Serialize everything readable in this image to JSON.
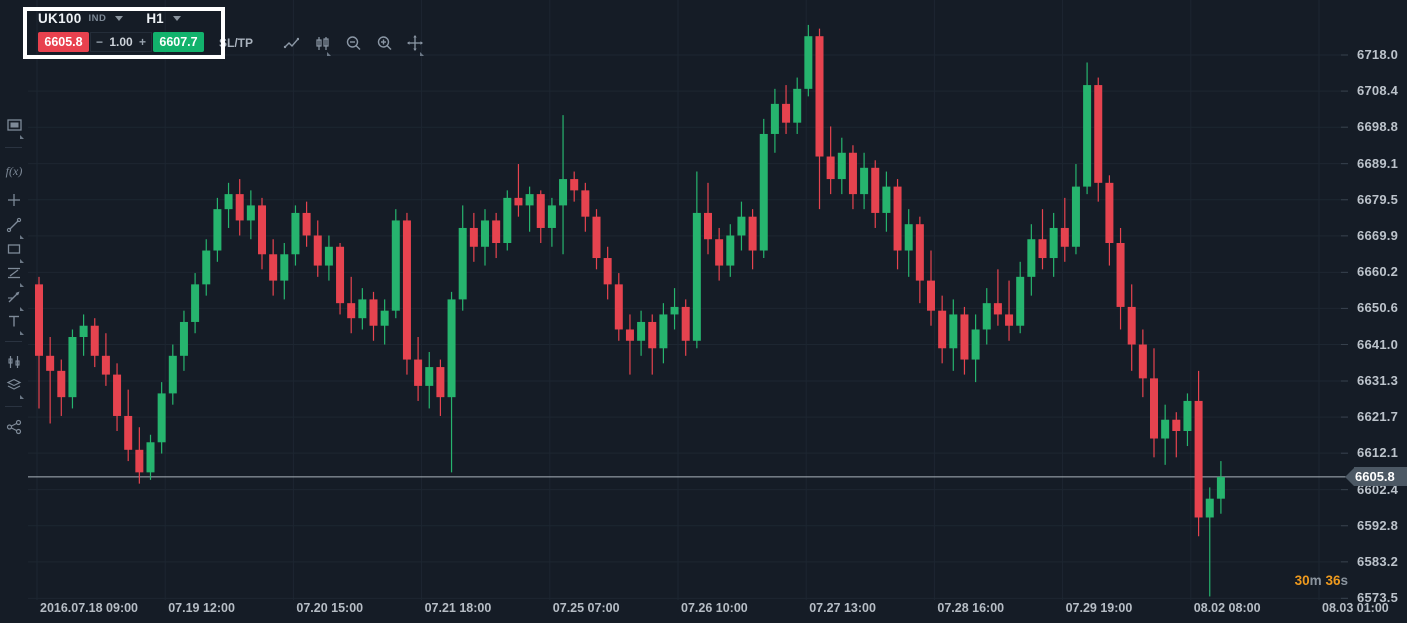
{
  "header": {
    "symbol": "UK100",
    "symbol_type": "IND",
    "timeframe": "H1",
    "sell_price": "6605.8",
    "minus_sign": "−",
    "quantity": "1.00",
    "plus_sign": "+",
    "buy_price": "6607.7",
    "sltp_label": "SL/TP"
  },
  "toolbar": {
    "icons": [
      "line-chart-icon",
      "candlestick-style-icon",
      "zoom-out-icon",
      "zoom-in-icon",
      "pan-crosshair-icon"
    ],
    "icons_with_caret": [
      "candlestick-style-icon",
      "pan-crosshair-icon"
    ]
  },
  "sidebar": {
    "icons": [
      "chart-layout-icon",
      "divider",
      "indicators-fx-icon",
      "crosshair-icon",
      "trend-line-icon",
      "rectangle-tool-icon",
      "fibonacci-icon",
      "arrow-annotation-icon",
      "text-tool-icon",
      "divider",
      "candle-settings-icon",
      "object-tree-icon",
      "divider",
      "share-icon"
    ]
  },
  "countdown": {
    "minutes": "30",
    "minutes_unit": "m",
    "seconds": "36",
    "seconds_unit": "s"
  },
  "price_tag": {
    "value": "6605.8"
  },
  "chart_data": {
    "type": "candlestick",
    "title": "UK100 H1 candlestick chart",
    "current_price": 6605.8,
    "sell_price": 6605.8,
    "buy_price": 6607.7,
    "ylim": [
      6570,
      6730
    ],
    "grid": true,
    "colors": {
      "up": "#26b46e",
      "down": "#e6434f",
      "grid": "#1d2631",
      "price_line": "#aab3bb"
    },
    "price_axis_labels": [
      "6718.0",
      "6708.4",
      "6698.8",
      "6689.1",
      "6679.5",
      "6669.9",
      "6660.2",
      "6650.6",
      "6641.0",
      "6631.3",
      "6621.7",
      "6612.1",
      "6602.4",
      "6592.8",
      "6583.2",
      "6573.5"
    ],
    "time_axis_labels": [
      "2016.07.18 09:00",
      "07.19 12:00",
      "07.20 15:00",
      "07.21 18:00",
      "07.25 07:00",
      "07.26 10:00",
      "07.27 13:00",
      "07.28 16:00",
      "07.29 19:00",
      "08.02 08:00",
      "08.03 01:00"
    ],
    "candles_ohlc": [
      [
        6657,
        6659,
        6624,
        6638
      ],
      [
        6638,
        6643,
        6620,
        6634
      ],
      [
        6634,
        6637,
        6622,
        6627
      ],
      [
        6627,
        6645,
        6624,
        6643
      ],
      [
        6643,
        6649,
        6638,
        6646
      ],
      [
        6646,
        6648,
        6635,
        6638
      ],
      [
        6638,
        6644,
        6630,
        6633
      ],
      [
        6633,
        6636,
        6618,
        6622
      ],
      [
        6622,
        6629,
        6610,
        6613
      ],
      [
        6613,
        6619,
        6604,
        6607
      ],
      [
        6607,
        6617,
        6605,
        6615
      ],
      [
        6615,
        6631,
        6612,
        6628
      ],
      [
        6628,
        6641,
        6625,
        6638
      ],
      [
        6638,
        6650,
        6634,
        6647
      ],
      [
        6647,
        6660,
        6644,
        6657
      ],
      [
        6657,
        6669,
        6654,
        6666
      ],
      [
        6666,
        6680,
        6663,
        6677
      ],
      [
        6677,
        6684,
        6672,
        6681
      ],
      [
        6681,
        6685,
        6670,
        6674
      ],
      [
        6674,
        6682,
        6669,
        6678
      ],
      [
        6678,
        6680,
        6661,
        6665
      ],
      [
        6665,
        6669,
        6654,
        6658
      ],
      [
        6658,
        6668,
        6653,
        6665
      ],
      [
        6665,
        6678,
        6662,
        6676
      ],
      [
        6676,
        6679,
        6667,
        6670
      ],
      [
        6670,
        6674,
        6659,
        6662
      ],
      [
        6662,
        6670,
        6658,
        6667
      ],
      [
        6667,
        6668,
        6649,
        6652
      ],
      [
        6652,
        6659,
        6644,
        6648
      ],
      [
        6648,
        6656,
        6645,
        6653
      ],
      [
        6653,
        6655,
        6642,
        6646
      ],
      [
        6646,
        6653,
        6641,
        6650
      ],
      [
        6650,
        6677,
        6648,
        6674
      ],
      [
        6674,
        6676,
        6633,
        6637
      ],
      [
        6637,
        6643,
        6626,
        6630
      ],
      [
        6630,
        6639,
        6624,
        6635
      ],
      [
        6635,
        6637,
        6622,
        6627
      ],
      [
        6627,
        6655,
        6607,
        6653
      ],
      [
        6653,
        6678,
        6650,
        6672
      ],
      [
        6672,
        6676,
        6663,
        6667
      ],
      [
        6667,
        6677,
        6662,
        6674
      ],
      [
        6674,
        6676,
        6664,
        6668
      ],
      [
        6668,
        6682,
        6666,
        6680
      ],
      [
        6680,
        6689,
        6675,
        6678
      ],
      [
        6678,
        6683,
        6671,
        6681
      ],
      [
        6681,
        6682,
        6668,
        6672
      ],
      [
        6672,
        6680,
        6667,
        6678
      ],
      [
        6678,
        6702,
        6665,
        6685
      ],
      [
        6685,
        6687,
        6679,
        6682
      ],
      [
        6682,
        6684,
        6671,
        6675
      ],
      [
        6675,
        6677,
        6661,
        6664
      ],
      [
        6664,
        6667,
        6653,
        6657
      ],
      [
        6657,
        6660,
        6642,
        6645
      ],
      [
        6645,
        6649,
        6633,
        6642
      ],
      [
        6642,
        6650,
        6638,
        6647
      ],
      [
        6647,
        6649,
        6633,
        6640
      ],
      [
        6640,
        6652,
        6636,
        6649
      ],
      [
        6649,
        6656,
        6645,
        6651
      ],
      [
        6651,
        6653,
        6638,
        6642
      ],
      [
        6642,
        6687,
        6640,
        6676
      ],
      [
        6676,
        6684,
        6665,
        6669
      ],
      [
        6669,
        6672,
        6658,
        6662
      ],
      [
        6662,
        6673,
        6659,
        6670
      ],
      [
        6670,
        6679,
        6666,
        6675
      ],
      [
        6675,
        6677,
        6661,
        6666
      ],
      [
        6666,
        6701,
        6664,
        6697
      ],
      [
        6697,
        6709,
        6692,
        6705
      ],
      [
        6705,
        6710,
        6697,
        6700
      ],
      [
        6700,
        6712,
        6697,
        6709
      ],
      [
        6709,
        6726,
        6707,
        6723
      ],
      [
        6723,
        6725,
        6677,
        6691
      ],
      [
        6691,
        6699,
        6681,
        6685
      ],
      [
        6685,
        6696,
        6681,
        6692
      ],
      [
        6692,
        6694,
        6677,
        6681
      ],
      [
        6681,
        6692,
        6677,
        6688
      ],
      [
        6688,
        6690,
        6672,
        6676
      ],
      [
        6676,
        6687,
        6671,
        6683
      ],
      [
        6683,
        6685,
        6661,
        6666
      ],
      [
        6666,
        6677,
        6659,
        6673
      ],
      [
        6673,
        6675,
        6652,
        6658
      ],
      [
        6658,
        6666,
        6646,
        6650
      ],
      [
        6650,
        6654,
        6636,
        6640
      ],
      [
        6640,
        6653,
        6634,
        6649
      ],
      [
        6649,
        6651,
        6633,
        6637
      ],
      [
        6637,
        6649,
        6631,
        6645
      ],
      [
        6645,
        6656,
        6641,
        6652
      ],
      [
        6652,
        6661,
        6646,
        6649
      ],
      [
        6649,
        6658,
        6642,
        6646
      ],
      [
        6646,
        6663,
        6644,
        6659
      ],
      [
        6659,
        6673,
        6654,
        6669
      ],
      [
        6669,
        6677,
        6661,
        6664
      ],
      [
        6664,
        6676,
        6659,
        6672
      ],
      [
        6672,
        6680,
        6663,
        6667
      ],
      [
        6667,
        6689,
        6665,
        6683
      ],
      [
        6683,
        6716,
        6681,
        6710
      ],
      [
        6710,
        6712,
        6679,
        6684
      ],
      [
        6684,
        6686,
        6662,
        6668
      ],
      [
        6668,
        6672,
        6645,
        6651
      ],
      [
        6651,
        6657,
        6634,
        6641
      ],
      [
        6641,
        6645,
        6627,
        6632
      ],
      [
        6632,
        6640,
        6611,
        6616
      ],
      [
        6616,
        6625,
        6609,
        6621
      ],
      [
        6621,
        6623,
        6611,
        6618
      ],
      [
        6618,
        6628,
        6614,
        6626
      ],
      [
        6626,
        6634,
        6590,
        6595
      ],
      [
        6595,
        6603,
        6574,
        6600
      ],
      [
        6600,
        6610,
        6596,
        6605.8
      ]
    ]
  }
}
